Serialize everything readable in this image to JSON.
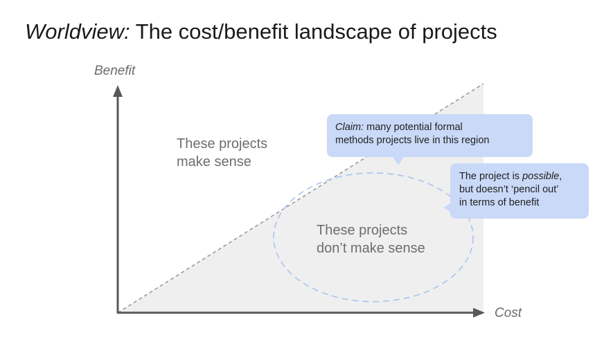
{
  "title": {
    "italic": "Worldview:",
    "rest": " The cost/benefit landscape of projects"
  },
  "axes": {
    "y_label": "Benefit",
    "x_label": "Cost"
  },
  "regions": {
    "upper": [
      "These projects",
      "make sense"
    ],
    "lower": [
      "These projects",
      "don’t make sense"
    ]
  },
  "callouts": {
    "claim": {
      "italic": "Claim:",
      "line1_rest": " many potential formal",
      "line2": "methods projects live in this region"
    },
    "possible": {
      "line1_prefix": "The project is ",
      "line1_italic": "possible",
      "line1_suffix": ",",
      "line2": "but doesn’t ‘pencil out’",
      "line3": "in terms of benefit"
    }
  },
  "colors": {
    "shaded_region": "#efefef",
    "axis": "#595959",
    "diagonal": "#9a9a9a",
    "ellipse": "#a9c3ee",
    "callout_bg": "#c9d9f7"
  }
}
